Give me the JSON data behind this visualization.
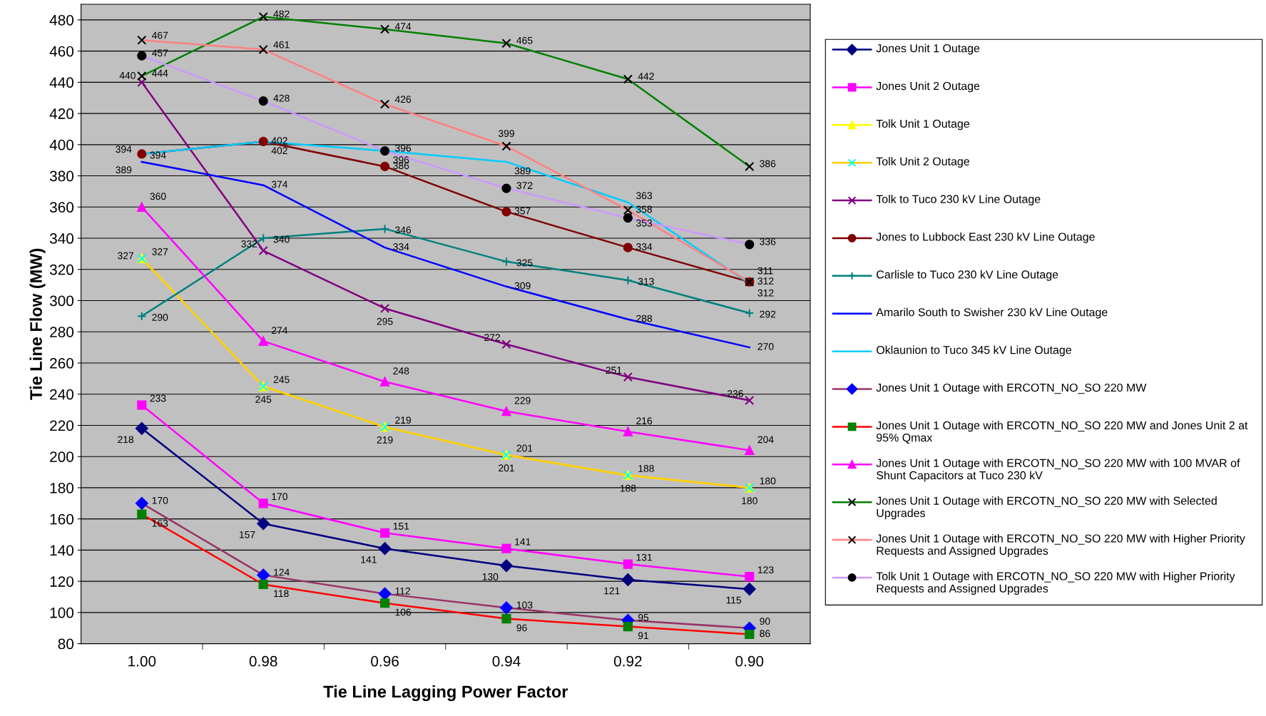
{
  "chart_data": {
    "type": "line",
    "xlabel": "Tie Line Lagging Power Factor",
    "ylabel": "Tie Line Flow (MW)",
    "categories": [
      "1.00",
      "0.98",
      "0.96",
      "0.94",
      "0.92",
      "0.90"
    ],
    "ylim": [
      80,
      490
    ],
    "yticks": [
      80,
      100,
      120,
      140,
      160,
      180,
      200,
      220,
      240,
      260,
      280,
      300,
      320,
      340,
      360,
      380,
      400,
      420,
      440,
      460,
      480
    ],
    "grid": "y",
    "legend": "right",
    "data_labels": true,
    "line_style": "solid",
    "series": [
      {
        "name": "Jones Unit 1 Outage",
        "color": "#000080",
        "marker": "diamond",
        "values": [
          218,
          157,
          141,
          130,
          121,
          115
        ]
      },
      {
        "name": "Jones Unit 2 Outage",
        "color": "#ff00ff",
        "marker": "square",
        "values": [
          233,
          170,
          151,
          141,
          131,
          123
        ]
      },
      {
        "name": "Tolk Unit 1 Outage",
        "color": "#ffff00",
        "marker": "triangle",
        "values": [
          327,
          245,
          219,
          201,
          188,
          180
        ]
      },
      {
        "name": "Tolk Unit 2 Outage",
        "color": "#ffcc00",
        "colors": [
          "#00ffff",
          "#00ffff",
          "#00ffff",
          "#00ffff",
          "#00ffff",
          "#00ffff"
        ],
        "marker": "cross",
        "values": [
          327,
          245,
          219,
          201,
          188,
          180
        ]
      },
      {
        "name": "Tolk to Tuco 230 kV Line Outage",
        "color": "#800080",
        "marker": "cross",
        "values": [
          440,
          332,
          295,
          272,
          251,
          236
        ]
      },
      {
        "name": "Jones to Lubbock East 230 kV Line Outage",
        "color": "#800000",
        "marker": "circle",
        "values": [
          394,
          402,
          386,
          357,
          334,
          312
        ]
      },
      {
        "name": "Carlisle to Tuco 230 kV Line Outage",
        "color": "#008080",
        "marker": "plus",
        "values": [
          290,
          340,
          346,
          325,
          313,
          292
        ]
      },
      {
        "name": "Amarilo South to Swisher 230 kV Line Outage",
        "color": "#0000ff",
        "marker": "none",
        "values": [
          389,
          374,
          334,
          309,
          288,
          270
        ]
      },
      {
        "name": "Oklaunion to Tuco 345 kV Line Outage",
        "color": "#00ccff",
        "marker": "none",
        "values": [
          394,
          402,
          396,
          389,
          363,
          311
        ]
      },
      {
        "name": "Jones Unit 1 Outage with ERCOTN_NO_SO 220 MW",
        "color": "#993366",
        "colors": [
          "#0000ff",
          "#0000ff",
          "#0000ff",
          "#0000ff",
          "#0000ff",
          "#0000ff"
        ],
        "marker": "diamond",
        "values": [
          170,
          124,
          112,
          103,
          95,
          90
        ]
      },
      {
        "name": "Jones Unit 1 Outage with ERCOTN_NO_SO 220 MW and Jones Unit 2 at 95% Qmax",
        "color": "#ff0000",
        "colors": [
          "#008000",
          "#008000",
          "#008000",
          "#008000",
          "#008000",
          "#008000"
        ],
        "marker": "square",
        "values": [
          163,
          118,
          106,
          96,
          91,
          86
        ]
      },
      {
        "name": "Jones Unit 1 Outage with ERCOTN_NO_SO 220 MW with 100 MVAR of Shunt Capacitors at Tuco 230 kV",
        "color": "#ff00ff",
        "marker": "triangle",
        "values": [
          360,
          274,
          248,
          229,
          216,
          204
        ]
      },
      {
        "name": "Jones Unit 1 Outage with ERCOTN_NO_SO 220 MW with Selected Upgrades",
        "color": "#008000",
        "colors": [
          "#000000",
          "#000000",
          "#000000",
          "#000000",
          "#000000",
          "#000000"
        ],
        "marker": "cross",
        "values": [
          444,
          482,
          474,
          465,
          442,
          386
        ]
      },
      {
        "name": "Jones Unit 1 Outage with ERCOTN_NO_SO 220 MW with Higher Priority Requests and Assigned Upgrades",
        "color": "#ff8080",
        "colors": [
          "#000000",
          "#000000",
          "#000000",
          "#000000",
          "#000000",
          "#000000"
        ],
        "marker": "cross",
        "values": [
          467,
          461,
          426,
          399,
          358,
          312
        ]
      },
      {
        "name": "Tolk Unit 1 Outage with ERCOTN_NO_SO 220 MW with Higher Priority Requests and Assigned Upgrades",
        "color": "#cc99ff",
        "colors": [
          "#000000",
          "#000000",
          "#000000",
          "#000000",
          "#000000",
          "#000000"
        ],
        "marker": "circle",
        "values": [
          457,
          428,
          396,
          372,
          353,
          336
        ]
      }
    ]
  }
}
